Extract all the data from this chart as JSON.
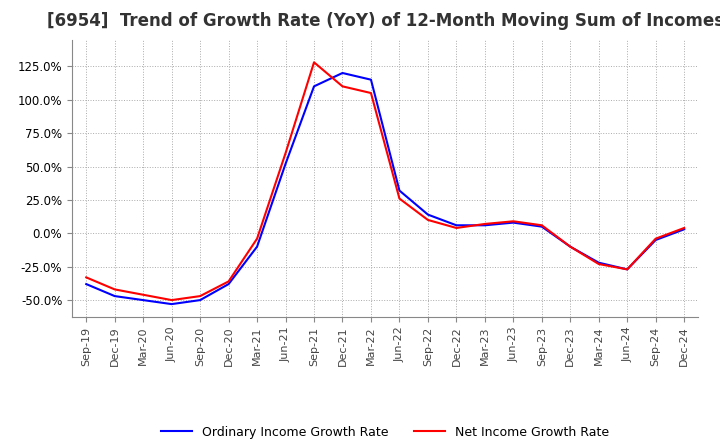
{
  "title": "[6954]  Trend of Growth Rate (YoY) of 12-Month Moving Sum of Incomes",
  "title_fontsize": 12,
  "x_labels": [
    "Sep-19",
    "Dec-19",
    "Mar-20",
    "Jun-20",
    "Sep-20",
    "Dec-20",
    "Mar-21",
    "Jun-21",
    "Sep-21",
    "Dec-21",
    "Mar-22",
    "Jun-22",
    "Sep-22",
    "Dec-22",
    "Mar-23",
    "Jun-23",
    "Sep-23",
    "Dec-23",
    "Mar-24",
    "Jun-24",
    "Sep-24",
    "Dec-24"
  ],
  "ordinary_income": [
    -0.38,
    -0.47,
    -0.5,
    -0.53,
    -0.5,
    -0.38,
    -0.1,
    0.52,
    1.1,
    1.2,
    1.15,
    0.32,
    0.14,
    0.06,
    0.06,
    0.08,
    0.05,
    -0.1,
    -0.22,
    -0.27,
    -0.05,
    0.03
  ],
  "net_income": [
    -0.33,
    -0.42,
    -0.46,
    -0.5,
    -0.47,
    -0.36,
    -0.04,
    0.6,
    1.28,
    1.1,
    1.05,
    0.26,
    0.1,
    0.04,
    0.07,
    0.09,
    0.06,
    -0.1,
    -0.23,
    -0.27,
    -0.04,
    0.04
  ],
  "ordinary_color": "#0000ff",
  "net_color": "#ff0000",
  "ylim_min": -0.625,
  "ylim_max": 1.45,
  "yticks": [
    -0.5,
    -0.25,
    0.0,
    0.25,
    0.5,
    0.75,
    1.0,
    1.25
  ],
  "grid_color": "#aaaaaa",
  "background_color": "#ffffff",
  "legend_ordinary": "Ordinary Income Growth Rate",
  "legend_net": "Net Income Growth Rate"
}
